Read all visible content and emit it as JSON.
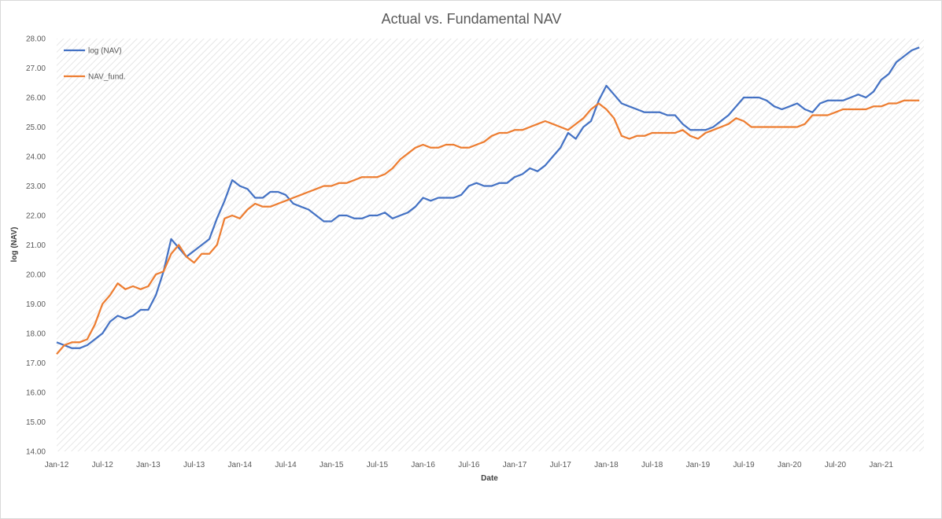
{
  "chart_data": {
    "type": "line",
    "title": "Actual vs. Fundamental NAV",
    "xlabel": "Date",
    "ylabel": "log (NAV)",
    "ylim": [
      14,
      28
    ],
    "yticks": [
      "14.00",
      "15.00",
      "16.00",
      "17.00",
      "18.00",
      "19.00",
      "20.00",
      "21.00",
      "22.00",
      "23.00",
      "24.00",
      "25.00",
      "26.00",
      "27.00",
      "28.00"
    ],
    "x_start": "2012-01",
    "x_end": "2021-06",
    "xticks": [
      "Jan-12",
      "Jul-12",
      "Jan-13",
      "Jul-13",
      "Jan-14",
      "Jul-14",
      "Jan-15",
      "Jul-15",
      "Jan-16",
      "Jul-16",
      "Jan-17",
      "Jul-17",
      "Jan-18",
      "Jul-18",
      "Jan-19",
      "Jul-19",
      "Jan-20",
      "Jul-20",
      "Jan-21"
    ],
    "legend_position": "top-left",
    "grid": false,
    "series": [
      {
        "name": "log (NAV)",
        "color": "#4472c4",
        "x": [
          "2012-01",
          "2012-02",
          "2012-03",
          "2012-04",
          "2012-05",
          "2012-06",
          "2012-07",
          "2012-08",
          "2012-09",
          "2012-10",
          "2012-11",
          "2012-12",
          "2013-01",
          "2013-02",
          "2013-03",
          "2013-04",
          "2013-05",
          "2013-06",
          "2013-07",
          "2013-08",
          "2013-09",
          "2013-10",
          "2013-11",
          "2013-12",
          "2014-01",
          "2014-02",
          "2014-03",
          "2014-04",
          "2014-05",
          "2014-06",
          "2014-07",
          "2014-08",
          "2014-09",
          "2014-10",
          "2014-11",
          "2014-12",
          "2015-01",
          "2015-02",
          "2015-03",
          "2015-04",
          "2015-05",
          "2015-06",
          "2015-07",
          "2015-08",
          "2015-09",
          "2015-10",
          "2015-11",
          "2015-12",
          "2016-01",
          "2016-02",
          "2016-03",
          "2016-04",
          "2016-05",
          "2016-06",
          "2016-07",
          "2016-08",
          "2016-09",
          "2016-10",
          "2016-11",
          "2016-12",
          "2017-01",
          "2017-02",
          "2017-03",
          "2017-04",
          "2017-05",
          "2017-06",
          "2017-07",
          "2017-08",
          "2017-09",
          "2017-10",
          "2017-11",
          "2017-12",
          "2018-01",
          "2018-02",
          "2018-03",
          "2018-04",
          "2018-05",
          "2018-06",
          "2018-07",
          "2018-08",
          "2018-09",
          "2018-10",
          "2018-11",
          "2018-12",
          "2019-01",
          "2019-02",
          "2019-03",
          "2019-04",
          "2019-05",
          "2019-06",
          "2019-07",
          "2019-08",
          "2019-09",
          "2019-10",
          "2019-11",
          "2019-12",
          "2020-01",
          "2020-02",
          "2020-03",
          "2020-04",
          "2020-05",
          "2020-06",
          "2020-07",
          "2020-08",
          "2020-09",
          "2020-10",
          "2020-11",
          "2020-12",
          "2021-01",
          "2021-02",
          "2021-03",
          "2021-04",
          "2021-05",
          "2021-06"
        ],
        "values": [
          17.7,
          17.6,
          17.5,
          17.5,
          17.6,
          17.8,
          18.0,
          18.4,
          18.6,
          18.5,
          18.6,
          18.8,
          18.8,
          19.3,
          20.1,
          21.2,
          20.9,
          20.6,
          20.8,
          21.0,
          21.2,
          21.9,
          22.5,
          23.2,
          23.0,
          22.9,
          22.6,
          22.6,
          22.8,
          22.8,
          22.7,
          22.4,
          22.3,
          22.2,
          22.0,
          21.8,
          21.8,
          22.0,
          22.0,
          21.9,
          21.9,
          22.0,
          22.0,
          22.1,
          21.9,
          22.0,
          22.1,
          22.3,
          22.6,
          22.5,
          22.6,
          22.6,
          22.6,
          22.7,
          23.0,
          23.1,
          23.0,
          23.0,
          23.1,
          23.1,
          23.3,
          23.4,
          23.6,
          23.5,
          23.7,
          24.0,
          24.3,
          24.8,
          24.6,
          25.0,
          25.2,
          25.9,
          26.4,
          26.1,
          25.8,
          25.7,
          25.6,
          25.5,
          25.5,
          25.5,
          25.4,
          25.4,
          25.1,
          24.9,
          24.9,
          24.9,
          25.0,
          25.2,
          25.4,
          25.7,
          26.0,
          26.0,
          26.0,
          25.9,
          25.7,
          25.6,
          25.7,
          25.8,
          25.6,
          25.5,
          25.8,
          25.9,
          25.9,
          25.9,
          26.0,
          26.1,
          26.0,
          26.2,
          26.6,
          26.8,
          27.2,
          27.4,
          27.6,
          27.7
        ]
      },
      {
        "name": "NAV_fund.",
        "color": "#ed7d31",
        "x": [
          "2012-01",
          "2012-02",
          "2012-03",
          "2012-04",
          "2012-05",
          "2012-06",
          "2012-07",
          "2012-08",
          "2012-09",
          "2012-10",
          "2012-11",
          "2012-12",
          "2013-01",
          "2013-02",
          "2013-03",
          "2013-04",
          "2013-05",
          "2013-06",
          "2013-07",
          "2013-08",
          "2013-09",
          "2013-10",
          "2013-11",
          "2013-12",
          "2014-01",
          "2014-02",
          "2014-03",
          "2014-04",
          "2014-05",
          "2014-06",
          "2014-07",
          "2014-08",
          "2014-09",
          "2014-10",
          "2014-11",
          "2014-12",
          "2015-01",
          "2015-02",
          "2015-03",
          "2015-04",
          "2015-05",
          "2015-06",
          "2015-07",
          "2015-08",
          "2015-09",
          "2015-10",
          "2015-11",
          "2015-12",
          "2016-01",
          "2016-02",
          "2016-03",
          "2016-04",
          "2016-05",
          "2016-06",
          "2016-07",
          "2016-08",
          "2016-09",
          "2016-10",
          "2016-11",
          "2016-12",
          "2017-01",
          "2017-02",
          "2017-03",
          "2017-04",
          "2017-05",
          "2017-06",
          "2017-07",
          "2017-08",
          "2017-09",
          "2017-10",
          "2017-11",
          "2017-12",
          "2018-01",
          "2018-02",
          "2018-03",
          "2018-04",
          "2018-05",
          "2018-06",
          "2018-07",
          "2018-08",
          "2018-09",
          "2018-10",
          "2018-11",
          "2018-12",
          "2019-01",
          "2019-02",
          "2019-03",
          "2019-04",
          "2019-05",
          "2019-06",
          "2019-07",
          "2019-08",
          "2019-09",
          "2019-10",
          "2019-11",
          "2019-12",
          "2020-01",
          "2020-02",
          "2020-03",
          "2020-04",
          "2020-05",
          "2020-06",
          "2020-07",
          "2020-08",
          "2020-09",
          "2020-10",
          "2020-11",
          "2020-12",
          "2021-01",
          "2021-02",
          "2021-03",
          "2021-04",
          "2021-05",
          "2021-06"
        ],
        "values": [
          17.3,
          17.6,
          17.7,
          17.7,
          17.8,
          18.3,
          19.0,
          19.3,
          19.7,
          19.5,
          19.6,
          19.5,
          19.6,
          20.0,
          20.1,
          20.7,
          21.0,
          20.6,
          20.4,
          20.7,
          20.7,
          21.0,
          21.9,
          22.0,
          21.9,
          22.2,
          22.4,
          22.3,
          22.3,
          22.4,
          22.5,
          22.6,
          22.7,
          22.8,
          22.9,
          23.0,
          23.0,
          23.1,
          23.1,
          23.2,
          23.3,
          23.3,
          23.3,
          23.4,
          23.6,
          23.9,
          24.1,
          24.3,
          24.4,
          24.3,
          24.3,
          24.4,
          24.4,
          24.3,
          24.3,
          24.4,
          24.5,
          24.7,
          24.8,
          24.8,
          24.9,
          24.9,
          25.0,
          25.1,
          25.2,
          25.1,
          25.0,
          24.9,
          25.1,
          25.3,
          25.6,
          25.8,
          25.6,
          25.3,
          24.7,
          24.6,
          24.7,
          24.7,
          24.8,
          24.8,
          24.8,
          24.8,
          24.9,
          24.7,
          24.6,
          24.8,
          24.9,
          25.0,
          25.1,
          25.3,
          25.2,
          25.0,
          25.0,
          25.0,
          25.0,
          25.0,
          25.0,
          25.0,
          25.1,
          25.4,
          25.4,
          25.4,
          25.5,
          25.6,
          25.6,
          25.6,
          25.6,
          25.7,
          25.7,
          25.8,
          25.8,
          25.9,
          25.9,
          25.9
        ]
      }
    ]
  }
}
